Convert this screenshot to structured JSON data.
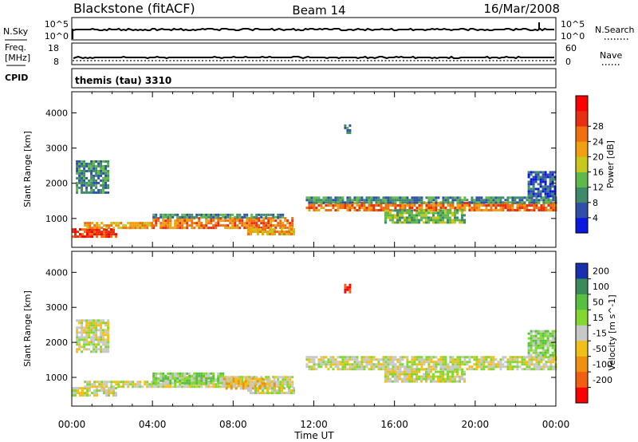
{
  "header": {
    "station": "Blackstone (fitACF)",
    "beam": "Beam 14",
    "date": "16/Mar/2008"
  },
  "status_panels": {
    "nsky": {
      "label": "N.Sky",
      "ticks": [
        "10^5",
        "10^0"
      ]
    },
    "nsearch": {
      "label": "N.Search",
      "ticks": [
        "10^5",
        "10^0"
      ]
    },
    "freq": {
      "label_line1": "Freq.",
      "label_line2": "[MHz]",
      "ticks": [
        "18",
        "8"
      ]
    },
    "nave": {
      "label": "Nave",
      "ticks": [
        "60",
        "0"
      ]
    },
    "cpid": {
      "label": "CPID",
      "value": "themis (tau) 3310"
    }
  },
  "chart_data": [
    {
      "type": "heatmap",
      "name": "power",
      "xlabel": "Time UT",
      "ylabel": "Slant Range [km]",
      "xlim": [
        0,
        24
      ],
      "ylim": [
        180,
        4600
      ],
      "x_ticks": [
        "00:00",
        "04:00",
        "08:00",
        "12:00",
        "16:00",
        "20:00",
        "00:00"
      ],
      "y_ticks": [
        "1000",
        "2000",
        "3000",
        "4000"
      ],
      "y_tick_values": [
        1000,
        2000,
        3000,
        4000
      ],
      "colorbar": {
        "label": "Power [dB]",
        "ticks": [
          "4",
          "8",
          "12",
          "16",
          "20",
          "24",
          "28"
        ],
        "colors": [
          "#0a18e0",
          "#2f4fa8",
          "#3f8a6a",
          "#5fb84a",
          "#c8c81c",
          "#f0a010",
          "#f07010",
          "#e83010",
          "#ff0000"
        ]
      },
      "regions": [
        {
          "t0": 0.0,
          "t1": 2.2,
          "r0": 450,
          "r1": 700,
          "level": 7
        },
        {
          "t0": 0.6,
          "t1": 4.0,
          "r0": 700,
          "r1": 880,
          "level": 5
        },
        {
          "t0": 4.0,
          "t1": 10.9,
          "r0": 700,
          "r1": 1000,
          "level": 6
        },
        {
          "t0": 4.0,
          "t1": 10.5,
          "r0": 1000,
          "r1": 1130,
          "level": 2
        },
        {
          "t0": 8.7,
          "t1": 11.0,
          "r0": 520,
          "r1": 700,
          "level": 5
        },
        {
          "t0": 0.2,
          "t1": 1.8,
          "r0": 1700,
          "r1": 2650,
          "level": 2
        },
        {
          "t0": 11.6,
          "t1": 24.0,
          "r0": 1200,
          "r1": 1420,
          "level": 6
        },
        {
          "t0": 11.6,
          "t1": 24.0,
          "r0": 1420,
          "r1": 1600,
          "level": 2
        },
        {
          "t0": 15.5,
          "t1": 19.5,
          "r0": 850,
          "r1": 1200,
          "level": 3
        },
        {
          "t0": 22.6,
          "t1": 24.0,
          "r0": 1600,
          "r1": 2300,
          "level": 1
        },
        {
          "t0": 13.5,
          "t1": 13.8,
          "r0": 3400,
          "r1": 3650,
          "level": 2
        }
      ]
    },
    {
      "type": "heatmap",
      "name": "velocity",
      "xlabel": "Time UT",
      "ylabel": "Slant Range [km]",
      "xlim": [
        0,
        24
      ],
      "ylim": [
        180,
        4600
      ],
      "x_ticks": [
        "00:00",
        "04:00",
        "08:00",
        "12:00",
        "16:00",
        "20:00",
        "00:00"
      ],
      "y_ticks": [
        "1000",
        "2000",
        "3000",
        "4000"
      ],
      "y_tick_values": [
        1000,
        2000,
        3000,
        4000
      ],
      "colorbar": {
        "label": "Velocity [m s^-1]",
        "ticks": [
          "200",
          "100",
          "50",
          "15",
          "-15",
          "-50",
          "-100",
          "-200"
        ],
        "colors": [
          "#1830b0",
          "#3a8a5a",
          "#58c040",
          "#80d830",
          "#c8c8c8",
          "#f0c018",
          "#f09010",
          "#f06010",
          "#ff0000"
        ]
      },
      "regions": [
        {
          "t0": 0.0,
          "t1": 2.2,
          "r0": 450,
          "r1": 700,
          "level": 4
        },
        {
          "t0": 0.6,
          "t1": 4.0,
          "r0": 700,
          "r1": 880,
          "level": 4
        },
        {
          "t0": 4.0,
          "t1": 10.9,
          "r0": 700,
          "r1": 1000,
          "level": 4
        },
        {
          "t0": 4.0,
          "t1": 7.5,
          "r0": 800,
          "r1": 1100,
          "level": 3
        },
        {
          "t0": 7.5,
          "t1": 10.0,
          "r0": 650,
          "r1": 950,
          "level": 5
        },
        {
          "t0": 8.7,
          "t1": 11.0,
          "r0": 520,
          "r1": 700,
          "level": 4
        },
        {
          "t0": 0.2,
          "t1": 1.8,
          "r0": 1700,
          "r1": 2650,
          "level": 4
        },
        {
          "t0": 11.6,
          "t1": 24.0,
          "r0": 1200,
          "r1": 1600,
          "level": 4
        },
        {
          "t0": 15.5,
          "t1": 19.5,
          "r0": 850,
          "r1": 1200,
          "level": 4
        },
        {
          "t0": 22.6,
          "t1": 24.0,
          "r0": 1600,
          "r1": 2300,
          "level": 3
        },
        {
          "t0": 13.5,
          "t1": 13.8,
          "r0": 3400,
          "r1": 3650,
          "level": 8
        }
      ]
    }
  ]
}
